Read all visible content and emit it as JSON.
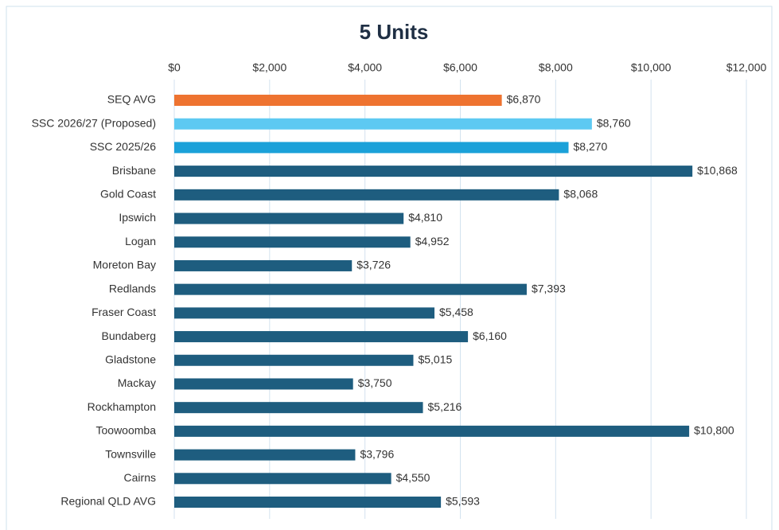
{
  "chart_data": {
    "type": "hbar",
    "title": "5 Units",
    "categories": [
      "SEQ AVG",
      "SSC 2026/27 (Proposed)",
      "SSC 2025/26",
      "Brisbane",
      "Gold Coast",
      "Ipswich",
      "Logan",
      "Moreton Bay",
      "Redlands",
      "Fraser Coast",
      "Bundaberg",
      "Gladstone",
      "Mackay",
      "Rockhampton",
      "Toowoomba",
      "Townsville",
      "Cairns",
      "Regional QLD AVG"
    ],
    "values": [
      6870,
      8760,
      8270,
      10868,
      8068,
      4810,
      4952,
      3726,
      7393,
      5458,
      6160,
      5015,
      3750,
      5216,
      10800,
      3796,
      4550,
      5593
    ],
    "value_labels": [
      "$6,870",
      "$8,760",
      "$8,270",
      "$10,868",
      "$8,068",
      "$4,810",
      "$4,952",
      "$3,726",
      "$7,393",
      "$5,458",
      "$6,160",
      "$5,015",
      "$3,750",
      "$5,216",
      "$10,800",
      "$3,796",
      "$4,550",
      "$5,593"
    ],
    "colors": [
      "#ee7330",
      "#5dc9f2",
      "#1ba1d9",
      "#1e5d7f",
      "#1e5d7f",
      "#1e5d7f",
      "#1e5d7f",
      "#1e5d7f",
      "#1e5d7f",
      "#1e5d7f",
      "#1e5d7f",
      "#1e5d7f",
      "#1e5d7f",
      "#1e5d7f",
      "#1e5d7f",
      "#1e5d7f",
      "#1e5d7f",
      "#1e5d7f"
    ],
    "xlim": [
      0,
      12000
    ],
    "xticks": [
      {
        "value": 0,
        "label": "$0"
      },
      {
        "value": 2000,
        "label": "$2,000"
      },
      {
        "value": 4000,
        "label": "$4,000"
      },
      {
        "value": 6000,
        "label": "$6,000"
      },
      {
        "value": 8000,
        "label": "$8,000"
      },
      {
        "value": 10000,
        "label": "$10,000"
      },
      {
        "value": 12000,
        "label": "$12,000"
      }
    ],
    "grid": true
  }
}
